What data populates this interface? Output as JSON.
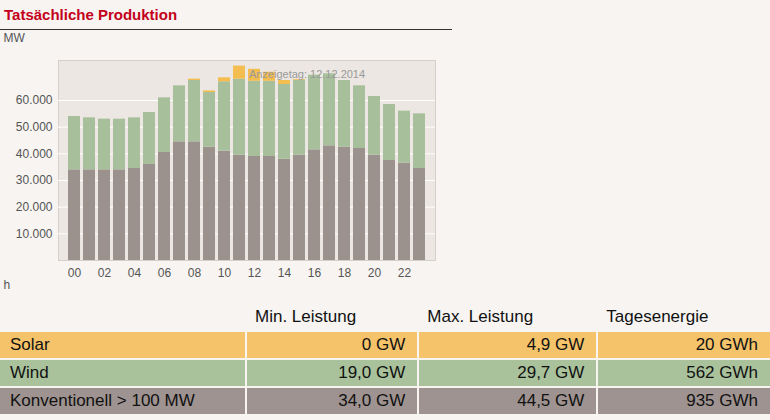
{
  "chart_data": {
    "type": "bar",
    "title": "Tatsächliche Produktion",
    "annotation": "Anzeigetag: 12.12.2014",
    "x_label": "h",
    "y_label": "MW",
    "stacked": true,
    "grid": true,
    "categories": [
      "00",
      null,
      "02",
      null,
      "04",
      null,
      "06",
      null,
      "08",
      null,
      "10",
      null,
      "12",
      null,
      "14",
      null,
      "16",
      null,
      "18",
      null,
      "20",
      null,
      "22",
      null
    ],
    "series": [
      {
        "name": "Konventionell > 100 MW",
        "color": "#9b918d",
        "values": [
          34000,
          34000,
          34000,
          34000,
          34500,
          36000,
          40500,
          44500,
          44500,
          42500,
          41000,
          39500,
          39000,
          39000,
          38000,
          39500,
          41500,
          43000,
          42500,
          42000,
          39500,
          37500,
          36500,
          34500
        ]
      },
      {
        "name": "Wind",
        "color": "#a7bf9b",
        "values": [
          20000,
          19500,
          19000,
          19000,
          19000,
          19500,
          20500,
          21000,
          23000,
          20500,
          26000,
          28500,
          28200,
          28200,
          28000,
          28000,
          28000,
          27000,
          25000,
          23500,
          22000,
          21000,
          19500,
          20500
        ]
      },
      {
        "name": "Solar",
        "color": "#f3bd50",
        "values": [
          0,
          0,
          0,
          0,
          0,
          0,
          0,
          0,
          500,
          600,
          1500,
          4900,
          4500,
          3400,
          1500,
          300,
          0,
          0,
          0,
          0,
          0,
          0,
          0,
          0
        ]
      }
    ],
    "ylim": [
      0,
      75000
    ],
    "yticks": [
      {
        "value": 10000,
        "label": "10.000"
      },
      {
        "value": 20000,
        "label": "20.000"
      },
      {
        "value": 30000,
        "label": "30.000"
      },
      {
        "value": 40000,
        "label": "40.000"
      },
      {
        "value": 50000,
        "label": "50.000"
      },
      {
        "value": 60000,
        "label": "60.000"
      }
    ]
  },
  "table": {
    "columns": [
      "Min. Leistung",
      "Max. Leistung",
      "Tagesenergie"
    ],
    "rows": [
      {
        "name": "Solar",
        "color": "#f4c36a",
        "cells": [
          "0 GW",
          "4,9 GW",
          "20 GWh"
        ]
      },
      {
        "name": "Wind",
        "color": "#a9c29c",
        "cells": [
          "19,0 GW",
          "29,7 GW",
          "562 GWh"
        ]
      },
      {
        "name": "Konventionell > 100 MW",
        "color": "#9e9390",
        "cells": [
          "34,0 GW",
          "44,5 GW",
          "935 GWh"
        ]
      }
    ]
  }
}
